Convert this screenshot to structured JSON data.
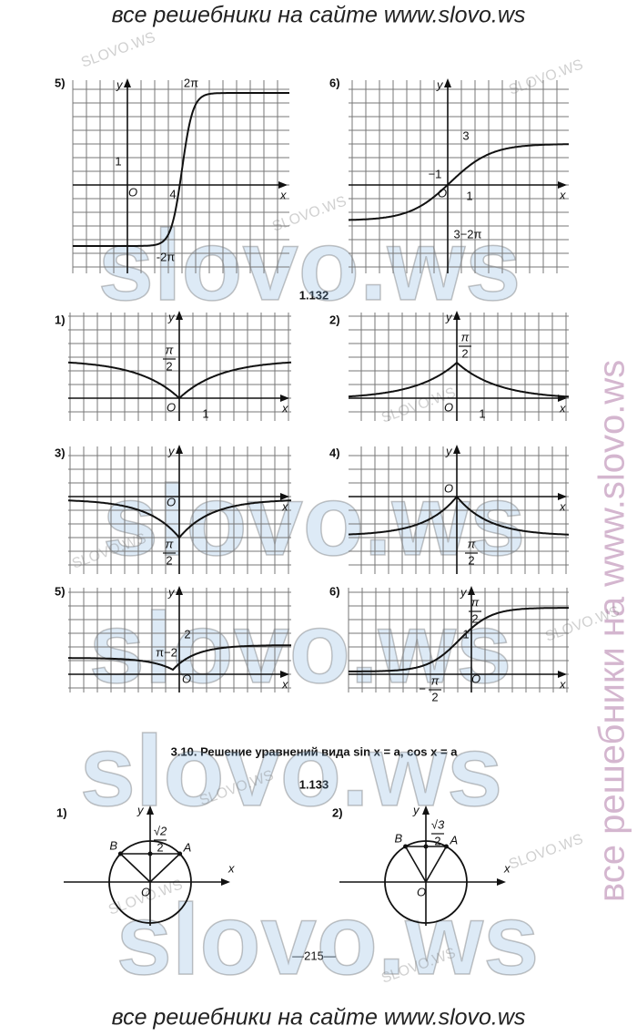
{
  "header": "все решебники на сайте www.slovo.ws",
  "footer": "все решебники на сайте www.slovo.ws",
  "side_watermark": "все решебники на www.slovo.ws",
  "watermark": "slovo.ws",
  "small_watermark": "SLOVO.WS",
  "top_graphs": [
    {
      "label": "5)",
      "y_axis": "y",
      "x_axis": "x",
      "origin": "O",
      "annotations": [
        "2π",
        "1",
        "4",
        "-2π"
      ]
    },
    {
      "label": "6)",
      "y_axis": "y",
      "x_axis": "x",
      "origin": "O",
      "annotations": [
        "3",
        "−1",
        "1",
        "3−2π"
      ]
    }
  ],
  "problem_1132": {
    "number": "1.132",
    "graphs": [
      {
        "label": "1)",
        "y_axis": "y",
        "x_axis": "x",
        "origin": "O",
        "annotations": [
          {
            "num": "π",
            "den": "2"
          },
          "1"
        ]
      },
      {
        "label": "2)",
        "y_axis": "y",
        "x_axis": "x",
        "origin": "O",
        "annotations": [
          {
            "num": "π",
            "den": "2"
          },
          "1"
        ]
      },
      {
        "label": "3)",
        "y_axis": "y",
        "x_axis": "x",
        "origin": "O",
        "annotations": [
          {
            "num": "π",
            "den": "2"
          }
        ]
      },
      {
        "label": "4)",
        "y_axis": "y",
        "x_axis": "x",
        "origin": "O",
        "annotations": [
          {
            "num": "π",
            "den": "2"
          }
        ]
      },
      {
        "label": "5)",
        "y_axis": "y",
        "x_axis": "x",
        "origin": "O",
        "annotations": [
          "2",
          "π−2"
        ]
      },
      {
        "label": "6)",
        "y_axis": "y",
        "x_axis": "x",
        "origin": "O",
        "annotations": [
          {
            "num": "π",
            "den": "2"
          },
          "1",
          {
            "sign": "−",
            "num": "π",
            "den": "2"
          }
        ]
      }
    ]
  },
  "section_title": "3.10. Решение уравнений вида sin x = a, cos x = a",
  "problem_1133": {
    "number": "1.133",
    "circles": [
      {
        "label": "1)",
        "y_axis": "y",
        "x_axis": "x",
        "origin": "O",
        "left_point": "B",
        "right_point": "A",
        "value": {
          "num": "√2",
          "den": "2"
        }
      },
      {
        "label": "2)",
        "y_axis": "y",
        "x_axis": "x",
        "origin": "O",
        "left_point": "B",
        "right_point": "A",
        "value": {
          "num": "√3",
          "den": "2"
        }
      }
    ]
  },
  "page_number": "—215—"
}
